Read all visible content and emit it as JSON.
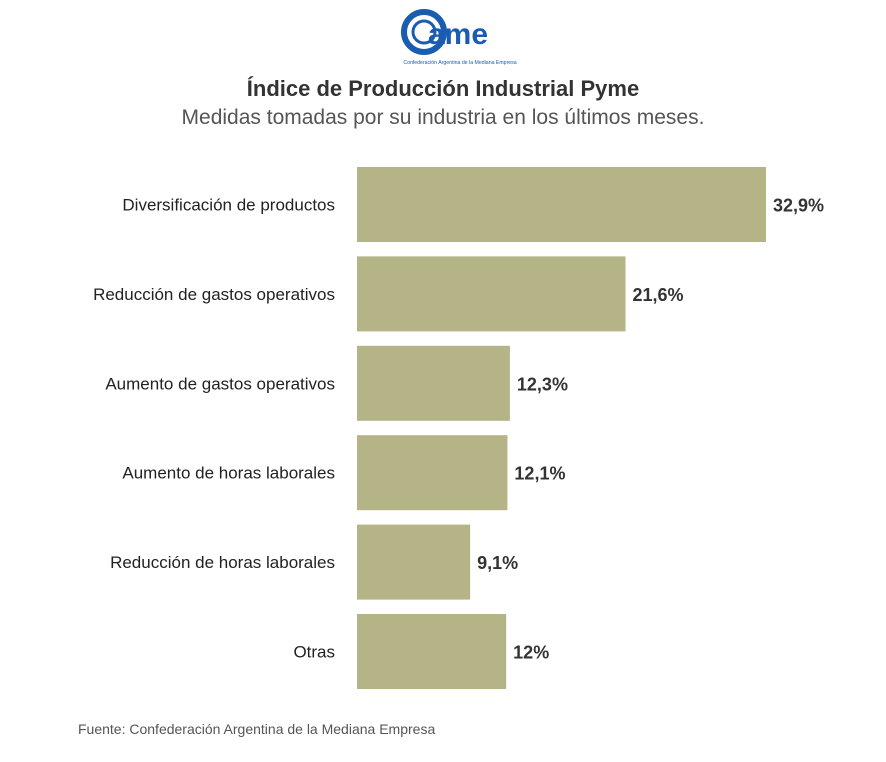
{
  "logo": {
    "text": "Came",
    "tagline": "Confederación Argentina de la Mediana Empresa",
    "color": "#1a5cb0"
  },
  "source": "Fuente: Confederación Argentina de la Mediana Empresa",
  "chart_data": {
    "type": "bar",
    "orientation": "horizontal",
    "title": "Índice de Producción Industrial Pyme",
    "subtitle": "Medidas tomadas por su industria en los últimos meses.",
    "categories": [
      "Diversificación de productos",
      "Reducción de gastos operativos",
      "Aumento de gastos operativos",
      "Aumento de horas laborales",
      "Reducción de horas laborales",
      "Otras"
    ],
    "values": [
      32.9,
      21.6,
      12.3,
      12.1,
      9.1,
      12
    ],
    "labels": [
      "32,9%",
      "21,6%",
      "12,3%",
      "12,1%",
      "9,1%",
      "12%"
    ],
    "unit": "%",
    "xlim": [
      0,
      32.9
    ],
    "bar_color": "#b5b487",
    "grid": false
  }
}
